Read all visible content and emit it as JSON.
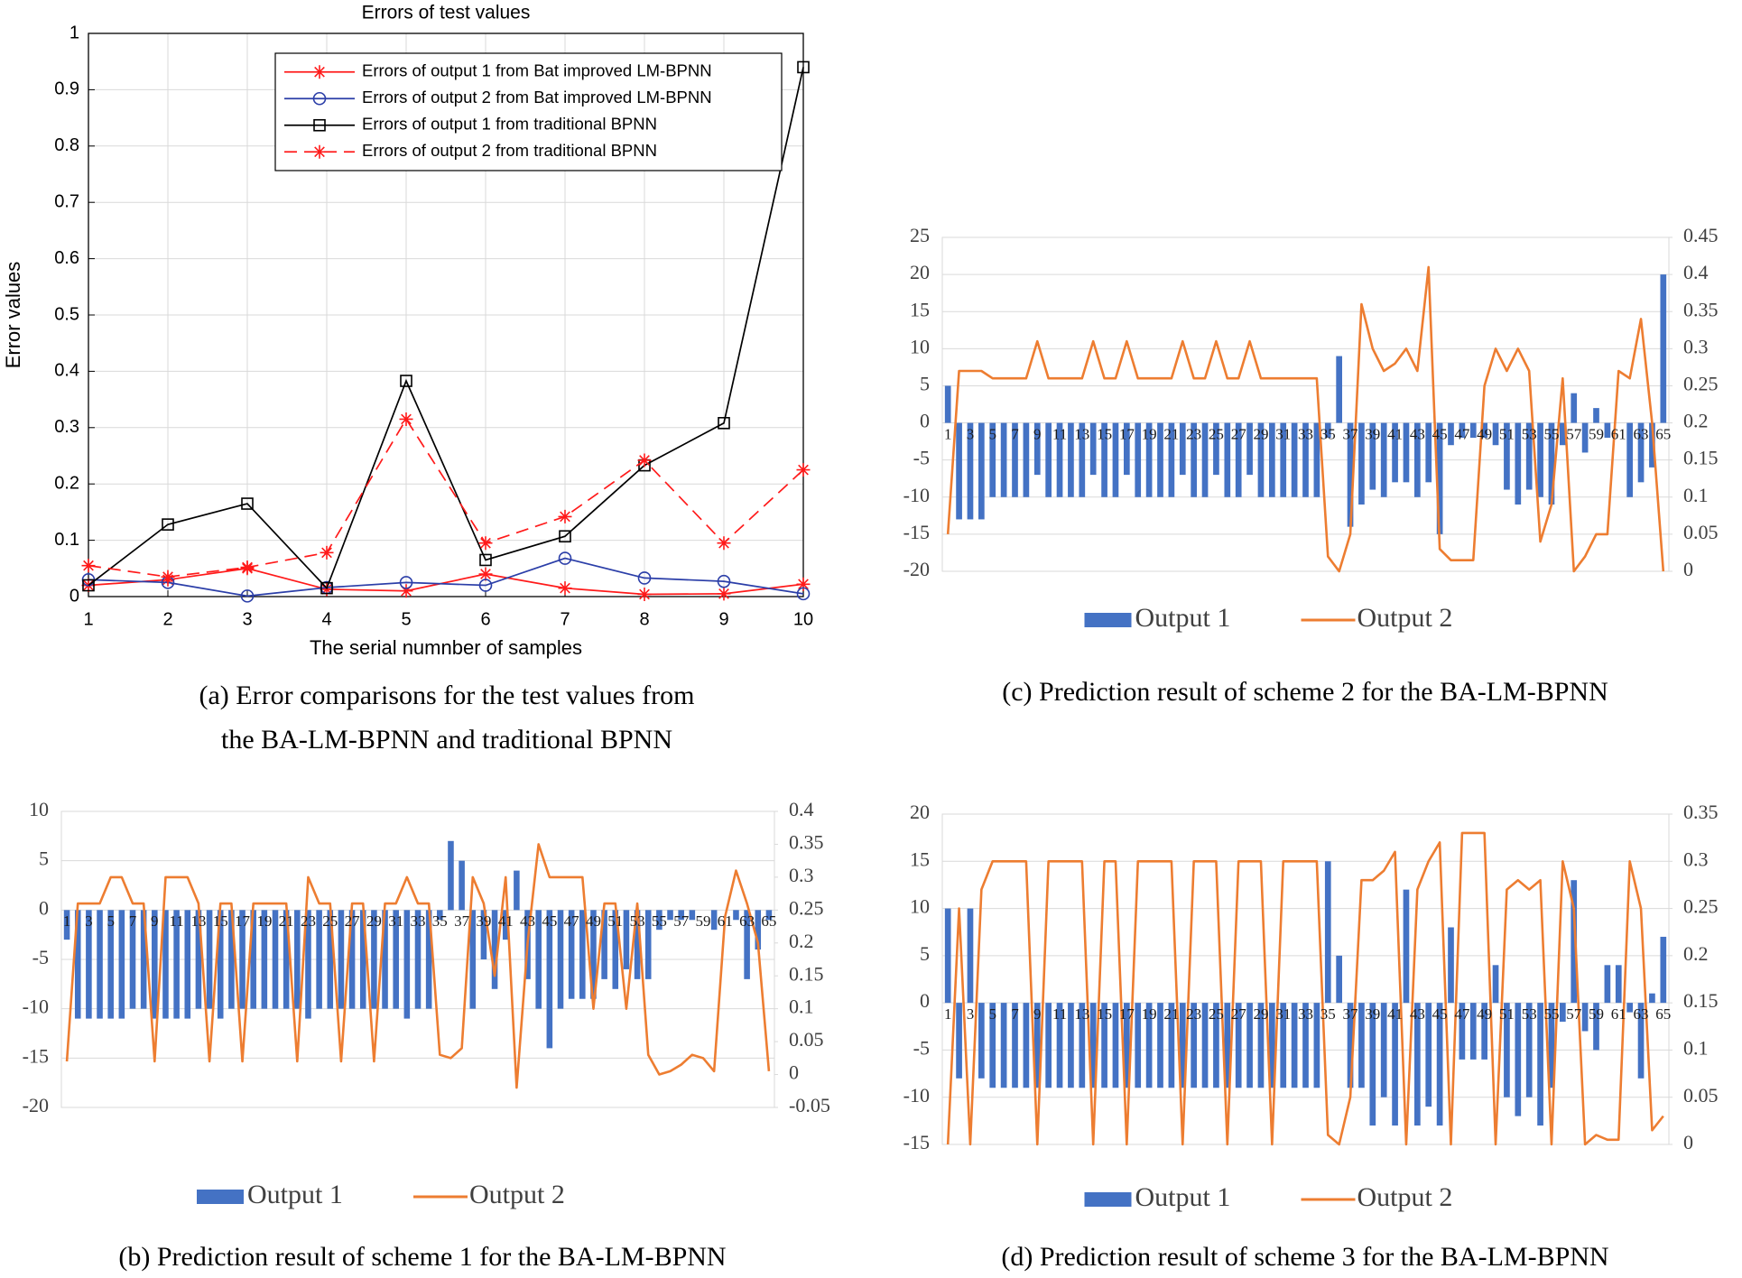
{
  "chart_data": [
    {
      "type": "line",
      "title": "Errors of test values",
      "xlabel": "The serial numnber of samples",
      "ylabel": "Error values",
      "caption": [
        "(a) Error comparisons for the test values from",
        "the BA-LM-BPNN and traditional BPNN"
      ],
      "x": [
        1,
        2,
        3,
        4,
        5,
        6,
        7,
        8,
        9,
        10
      ],
      "xlim": [
        1,
        10
      ],
      "xticks": [
        1,
        2,
        3,
        4,
        5,
        6,
        7,
        8,
        9,
        10
      ],
      "ylim": [
        0,
        1
      ],
      "yticks": [
        0,
        0.1,
        0.2,
        0.3,
        0.4,
        0.5,
        0.6,
        0.7,
        0.8,
        0.9,
        1
      ],
      "grid": true,
      "legend": "top-right",
      "series": [
        {
          "name": "Errors of output 1 from Bat improved LM-BPNN",
          "color": "#ff1a1a",
          "marker": "star",
          "dash": false,
          "values": [
            0.02,
            0.03,
            0.05,
            0.013,
            0.01,
            0.04,
            0.015,
            0.004,
            0.005,
            0.022
          ]
        },
        {
          "name": "Errors of output 2 from Bat improved LM-BPNN",
          "color": "#2b3ea8",
          "marker": "circle",
          "dash": false,
          "values": [
            0.03,
            0.025,
            0.001,
            0.016,
            0.025,
            0.02,
            0.068,
            0.033,
            0.027,
            0.005
          ]
        },
        {
          "name": "Errors of output 1 from traditional BPNN",
          "color": "#000000",
          "marker": "square",
          "dash": false,
          "values": [
            0.02,
            0.128,
            0.165,
            0.015,
            0.383,
            0.065,
            0.107,
            0.233,
            0.308,
            0.94
          ]
        },
        {
          "name": "Errors of output 2 from traditional BPNN",
          "color": "#ff1a1a",
          "marker": "star",
          "dash": true,
          "values": [
            0.055,
            0.035,
            0.052,
            0.078,
            0.315,
            0.095,
            0.142,
            0.242,
            0.095,
            0.225
          ]
        }
      ]
    },
    {
      "type": "bar_line",
      "caption": [
        "(b) Prediction result of scheme 1 for the BA-LM-BPNN"
      ],
      "categories": [
        1,
        null,
        3,
        null,
        5,
        null,
        7,
        null,
        9,
        null,
        11,
        null,
        13,
        null,
        15,
        null,
        17,
        null,
        19,
        null,
        21,
        null,
        23,
        null,
        25,
        null,
        27,
        null,
        29,
        null,
        31,
        null,
        33,
        null,
        35,
        null,
        37,
        null,
        39,
        null,
        41,
        null,
        43,
        null,
        45,
        null,
        47,
        null,
        49,
        null,
        51,
        null,
        53,
        null,
        55,
        null,
        57,
        null,
        59,
        null,
        61,
        null,
        63,
        null,
        65
      ],
      "ylim": [
        -20,
        10
      ],
      "yticks": [
        -20,
        -15,
        -10,
        -5,
        0,
        5,
        10
      ],
      "y2lim": [
        -0.05,
        0.4
      ],
      "y2ticks": [
        -0.05,
        0,
        0.05,
        0.1,
        0.15,
        0.2,
        0.25,
        0.3,
        0.35,
        0.4
      ],
      "grid": true,
      "legend": "bottom",
      "series": [
        {
          "name": "Output 1",
          "color": "#4472c4",
          "values": [
            -3,
            -11,
            -11,
            -11,
            -11,
            -11,
            -10,
            -10,
            -11,
            -11,
            -11,
            -11,
            -10,
            -10,
            -11,
            -10,
            -10,
            -10,
            -10,
            -10,
            -10,
            -10,
            -11,
            -10,
            -10,
            -10,
            -10,
            -10,
            -10,
            -10,
            -10,
            -11,
            -10,
            -10,
            -1,
            7,
            5,
            -10,
            -5,
            -8,
            -3,
            4,
            -7,
            -10,
            -14,
            -10,
            -9,
            -9,
            -9,
            -7,
            -8,
            -6,
            -7,
            -7,
            -2,
            -1,
            -1,
            -1,
            0,
            -2,
            0,
            -1,
            -7,
            -4,
            -1
          ]
        },
        {
          "name": "Output 2",
          "color": "#ed7d31",
          "axis": "y2",
          "values": [
            0.02,
            0.26,
            0.26,
            0.26,
            0.3,
            0.3,
            0.26,
            0.26,
            0.02,
            0.3,
            0.3,
            0.3,
            0.26,
            0.02,
            0.26,
            0.26,
            0.02,
            0.26,
            0.26,
            0.26,
            0.26,
            0.02,
            0.3,
            0.26,
            0.26,
            0.02,
            0.26,
            0.26,
            0.02,
            0.26,
            0.26,
            0.3,
            0.26,
            0.26,
            0.03,
            0.025,
            0.04,
            0.3,
            0.26,
            0.15,
            0.3,
            -0.02,
            0.2,
            0.35,
            0.3,
            0.3,
            0.3,
            0.3,
            0.1,
            0.26,
            0.26,
            0.1,
            0.26,
            0.03,
            0,
            0.005,
            0.015,
            0.03,
            0.025,
            0.005,
            0.24,
            0.31,
            0.26,
            0.2,
            0.005
          ]
        }
      ]
    },
    {
      "type": "bar_line",
      "caption": [
        "(c) Prediction result of scheme 2 for the BA-LM-BPNN"
      ],
      "categories": [
        1,
        null,
        3,
        null,
        5,
        null,
        7,
        null,
        9,
        null,
        11,
        null,
        13,
        null,
        15,
        null,
        17,
        null,
        19,
        null,
        21,
        null,
        23,
        null,
        25,
        null,
        27,
        null,
        29,
        null,
        31,
        null,
        33,
        null,
        35,
        null,
        37,
        null,
        39,
        null,
        41,
        null,
        43,
        null,
        45,
        null,
        47,
        null,
        49,
        null,
        51,
        null,
        53,
        null,
        55,
        null,
        57,
        null,
        59,
        null,
        61,
        null,
        63,
        null,
        65
      ],
      "ylim": [
        -20,
        25
      ],
      "yticks": [
        -20,
        -15,
        -10,
        -5,
        0,
        5,
        10,
        15,
        20,
        25
      ],
      "y2lim": [
        0,
        0.45
      ],
      "y2ticks": [
        0,
        0.05,
        0.1,
        0.15,
        0.2,
        0.25,
        0.3,
        0.35,
        0.4,
        0.45
      ],
      "grid": true,
      "legend": "bottom",
      "series": [
        {
          "name": "Output 1",
          "color": "#4472c4",
          "values": [
            5,
            -13,
            -13,
            -13,
            -10,
            -10,
            -10,
            -10,
            -7,
            -10,
            -10,
            -10,
            -10,
            -7,
            -10,
            -10,
            -7,
            -10,
            -10,
            -10,
            -10,
            -7,
            -10,
            -10,
            -7,
            -10,
            -10,
            -7,
            -10,
            -10,
            -10,
            -10,
            -10,
            -10,
            -2,
            9,
            -14,
            -11,
            -9,
            -10,
            -8,
            -8,
            -10,
            -8,
            -15,
            -3,
            -2,
            -2,
            -2,
            -3,
            -9,
            -11,
            -9,
            -10,
            -11,
            -3,
            4,
            -4,
            2,
            -2,
            0,
            -10,
            -8,
            -6,
            20
          ]
        },
        {
          "name": "Output 2",
          "color": "#ed7d31",
          "axis": "y2",
          "values": [
            0.05,
            0.27,
            0.27,
            0.27,
            0.26,
            0.26,
            0.26,
            0.26,
            0.31,
            0.26,
            0.26,
            0.26,
            0.26,
            0.31,
            0.26,
            0.26,
            0.31,
            0.26,
            0.26,
            0.26,
            0.26,
            0.31,
            0.26,
            0.26,
            0.31,
            0.26,
            0.26,
            0.31,
            0.26,
            0.26,
            0.26,
            0.26,
            0.26,
            0.26,
            0.02,
            0,
            0.05,
            0.36,
            0.3,
            0.27,
            0.28,
            0.3,
            0.27,
            0.41,
            0.03,
            0.015,
            0.015,
            0.015,
            0.25,
            0.3,
            0.27,
            0.3,
            0.27,
            0.04,
            0.09,
            0.26,
            0,
            0.02,
            0.05,
            0.05,
            0.27,
            0.26,
            0.34,
            0.2,
            0
          ]
        }
      ]
    },
    {
      "type": "bar_line",
      "caption": [
        "(d) Prediction result of scheme 3 for the BA-LM-BPNN"
      ],
      "categories": [
        1,
        null,
        3,
        null,
        5,
        null,
        7,
        null,
        9,
        null,
        11,
        null,
        13,
        null,
        15,
        null,
        17,
        null,
        19,
        null,
        21,
        null,
        23,
        null,
        25,
        null,
        27,
        null,
        29,
        null,
        31,
        null,
        33,
        null,
        35,
        null,
        37,
        null,
        39,
        null,
        41,
        null,
        43,
        null,
        45,
        null,
        47,
        null,
        49,
        null,
        51,
        null,
        53,
        null,
        55,
        null,
        57,
        null,
        59,
        null,
        61,
        null,
        63,
        null,
        65
      ],
      "ylim": [
        -15,
        20
      ],
      "yticks": [
        -15,
        -10,
        -5,
        0,
        5,
        10,
        15,
        20
      ],
      "y2lim": [
        0,
        0.35
      ],
      "y2ticks": [
        0,
        0.05,
        0.1,
        0.15,
        0.2,
        0.25,
        0.3,
        0.35
      ],
      "grid": true,
      "legend": "bottom",
      "series": [
        {
          "name": "Output 1",
          "color": "#4472c4",
          "values": [
            10,
            -8,
            10,
            -8,
            -9,
            -9,
            -9,
            -9,
            -9,
            -9,
            -9,
            -9,
            -9,
            -9,
            -9,
            -9,
            -9,
            -9,
            -9,
            -9,
            -9,
            -9,
            -9,
            -9,
            -9,
            -9,
            -9,
            -9,
            -9,
            -9,
            -9,
            -9,
            -9,
            -9,
            15,
            5,
            -9,
            -9,
            -13,
            -10,
            -13,
            12,
            -13,
            -11,
            -13,
            8,
            -6,
            -6,
            -6,
            4,
            -10,
            -12,
            -10,
            -13,
            -9,
            -2,
            13,
            -3,
            -5,
            4,
            4,
            -1,
            -8,
            1,
            7
          ]
        },
        {
          "name": "Output 2",
          "color": "#ed7d31",
          "axis": "y2",
          "values": [
            0,
            0.25,
            0,
            0.27,
            0.3,
            0.3,
            0.3,
            0.3,
            0,
            0.3,
            0.3,
            0.3,
            0.3,
            0,
            0.3,
            0.3,
            0,
            0.3,
            0.3,
            0.3,
            0.3,
            0,
            0.3,
            0.3,
            0.3,
            0,
            0.3,
            0.3,
            0.3,
            0,
            0.3,
            0.3,
            0.3,
            0.3,
            0.01,
            0,
            0.05,
            0.28,
            0.28,
            0.29,
            0.31,
            0,
            0.27,
            0.3,
            0.32,
            0,
            0.33,
            0.33,
            0.33,
            0,
            0.27,
            0.28,
            0.27,
            0.28,
            0,
            0.3,
            0.25,
            0,
            0.01,
            0.005,
            0.005,
            0.3,
            0.25,
            0.015,
            0.03
          ]
        }
      ]
    }
  ]
}
